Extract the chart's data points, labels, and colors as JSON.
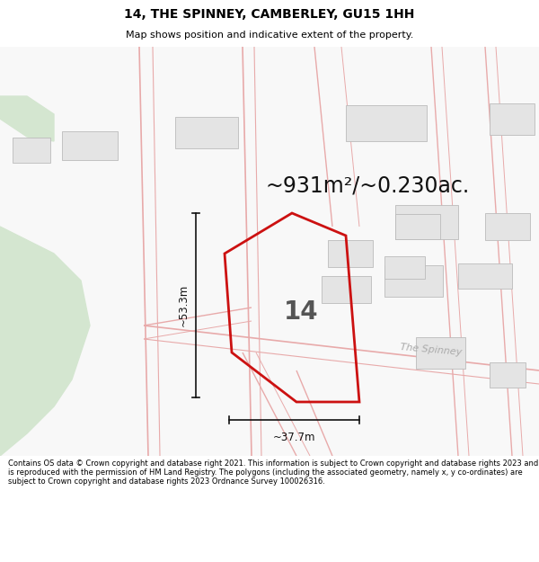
{
  "title": "14, THE SPINNEY, CAMBERLEY, GU15 1HH",
  "subtitle": "Map shows position and indicative extent of the property.",
  "area_text": "~931m²/~0.230ac.",
  "label_14": "14",
  "width_label": "~37.7m",
  "height_label": "~53.3m",
  "road_label": "The Spinney",
  "footer": "Contains OS data © Crown copyright and database right 2021. This information is subject to Crown copyright and database rights 2023 and is reproduced with the permission of HM Land Registry. The polygons (including the associated geometry, namely x, y co-ordinates) are subject to Crown copyright and database rights 2023 Ordnance Survey 100026316.",
  "map_bg": "#f8f8f8",
  "green_color": "#d4e6d0",
  "building_face": "#e4e4e4",
  "building_edge": "#bbbbbb",
  "road_line_color": "#e8aaaa",
  "road_line_color2": "#ccaaaa",
  "prop_edge_color": "#cc1111",
  "dim_color": "#111111",
  "text_color": "#111111",
  "road_label_color": "#aaaaaa",
  "footer_bg": "#ffffff",
  "title_bg": "#ffffff",
  "title_fontsize": 10,
  "subtitle_fontsize": 8,
  "area_fontsize": 17,
  "num_fontsize": 20,
  "dim_fontsize": 8.5,
  "road_fontsize": 8
}
